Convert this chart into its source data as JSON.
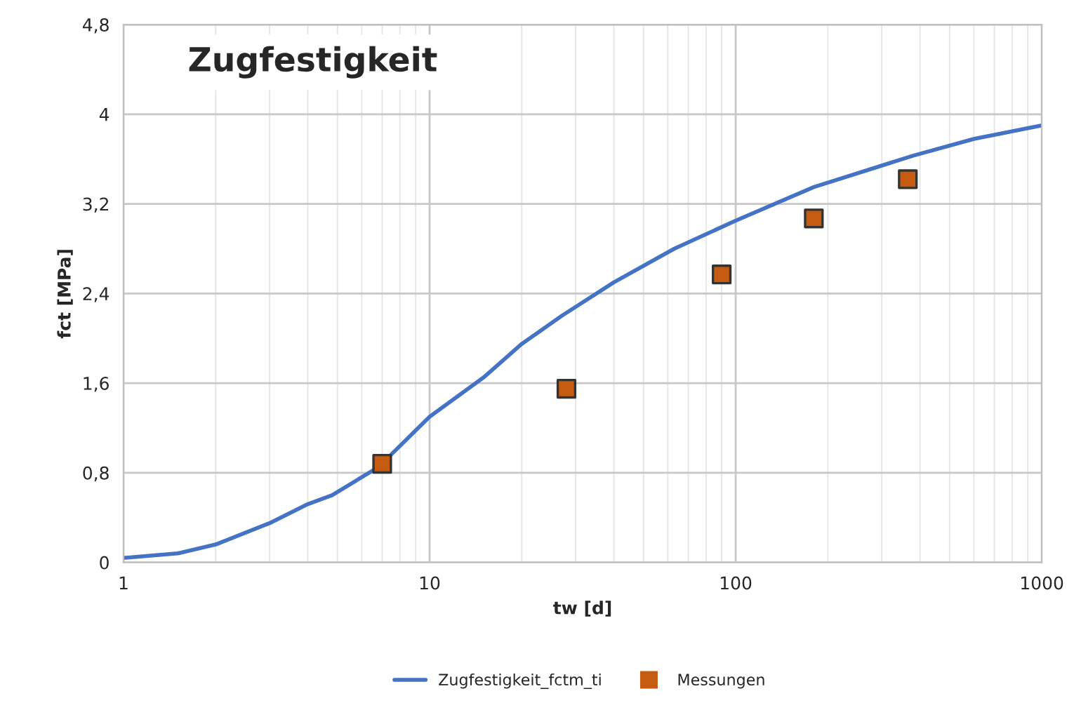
{
  "chart_data": {
    "type": "line",
    "title": "Zugfestigkeit",
    "xlabel": "tw [d]",
    "ylabel": "fct [MPa]",
    "log": "x",
    "xlim": [
      1,
      1000
    ],
    "xticks": [
      1,
      10,
      100,
      1000
    ],
    "ylim": [
      0,
      4.8
    ],
    "yticks": [
      {
        "value": 0,
        "label": "0"
      },
      {
        "value": 0.8,
        "label": "0,8"
      },
      {
        "value": 1.6,
        "label": "1,6"
      },
      {
        "value": 2.4,
        "label": "2,4"
      },
      {
        "value": 3.2,
        "label": "3,2"
      },
      {
        "value": 4,
        "label": "4"
      },
      {
        "value": 4.8,
        "label": "4,8"
      }
    ],
    "grid": true,
    "legend": "bottom",
    "series": [
      {
        "name": "Zugfestigkeit_fctm_ti",
        "color": "#4472c4",
        "marker": "none",
        "x": [
          1,
          1.5,
          2,
          3,
          4,
          4.8,
          6.8,
          10,
          15,
          20,
          27,
          40,
          63,
          100,
          180,
          380,
          600,
          1000
        ],
        "values": [
          0.04,
          0.08,
          0.16,
          0.35,
          0.52,
          0.6,
          0.85,
          1.3,
          1.65,
          1.95,
          2.2,
          2.5,
          2.8,
          3.05,
          3.35,
          3.63,
          3.78,
          3.9
        ]
      },
      {
        "name": "Messungen",
        "type": "scatter",
        "color": "#c55a11",
        "marker": "square",
        "x": [
          7,
          28,
          90,
          180,
          365
        ],
        "values": [
          0.88,
          1.55,
          2.57,
          3.07,
          3.42
        ]
      }
    ]
  }
}
